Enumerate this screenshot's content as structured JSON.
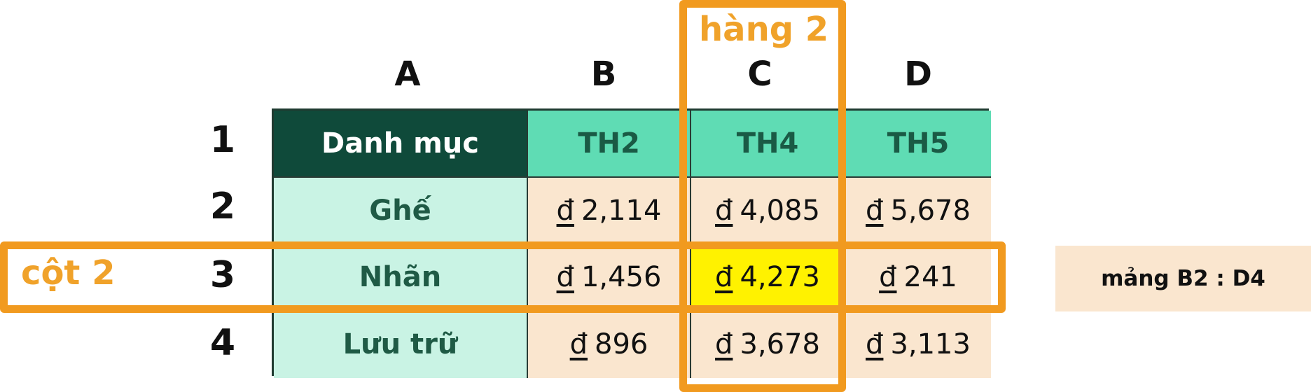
{
  "columns": [
    "A",
    "B",
    "C",
    "D"
  ],
  "rows": [
    "1",
    "2",
    "3",
    "4"
  ],
  "table": {
    "header": [
      "Danh mục",
      "TH2",
      "TH4",
      "TH5"
    ],
    "body": [
      {
        "label": "Ghế",
        "values": [
          "2,114",
          "4,085",
          "5,678"
        ]
      },
      {
        "label": "Nhãn",
        "values": [
          "1,456",
          "4,273",
          "241"
        ]
      },
      {
        "label": "Lưu trữ",
        "values": [
          "896",
          "3,678",
          "3,113"
        ]
      }
    ],
    "currency_symbol": "đ"
  },
  "annotations": {
    "column_label": "hàng 2",
    "row_label": "cột 2",
    "range_label": "mảng B2 : D4"
  },
  "colors": {
    "header_dark": "#0f4a3a",
    "header_mint": "#5fdcb4",
    "label_cell": "#c9f3e4",
    "value_cell": "#fae6cf",
    "highlight": "#fff200",
    "annotation": "#f19a1f"
  }
}
